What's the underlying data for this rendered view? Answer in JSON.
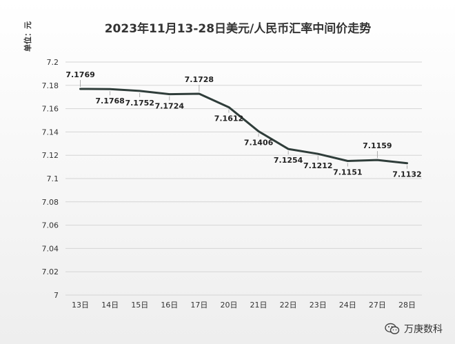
{
  "chart_data": {
    "type": "line",
    "title": "2023年11月13-28日美元/人民币汇率中间价走势",
    "ylabel": "单位：元",
    "xlabel": "",
    "categories": [
      "13日",
      "14日",
      "15日",
      "16日",
      "17日",
      "20日",
      "21日",
      "22日",
      "23日",
      "24日",
      "27日",
      "28日"
    ],
    "series": [
      {
        "values": [
          7.1769,
          7.1768,
          7.1752,
          7.1724,
          7.1728,
          7.1612,
          7.1406,
          7.1254,
          7.1212,
          7.1151,
          7.1159,
          7.1132
        ]
      }
    ],
    "data_labels": [
      "7.1769",
      "7.1768",
      "7.1752",
      "7.1724",
      "7.1728",
      "7.1612",
      "7.1406",
      "7.1254",
      "7.1212",
      "7.1151",
      "7.1159",
      "7.1132"
    ],
    "ylim": [
      7,
      7.2
    ],
    "yticks": [
      "7",
      "7.02",
      "7.04",
      "7.06",
      "7.08",
      "7.1",
      "7.12",
      "7.14",
      "7.16",
      "7.18",
      "7.2"
    ],
    "grid": true,
    "legend": "none",
    "line_color": "#2f3d3a"
  },
  "watermark": {
    "text": "万庚数科",
    "icon": "wechat-icon"
  }
}
